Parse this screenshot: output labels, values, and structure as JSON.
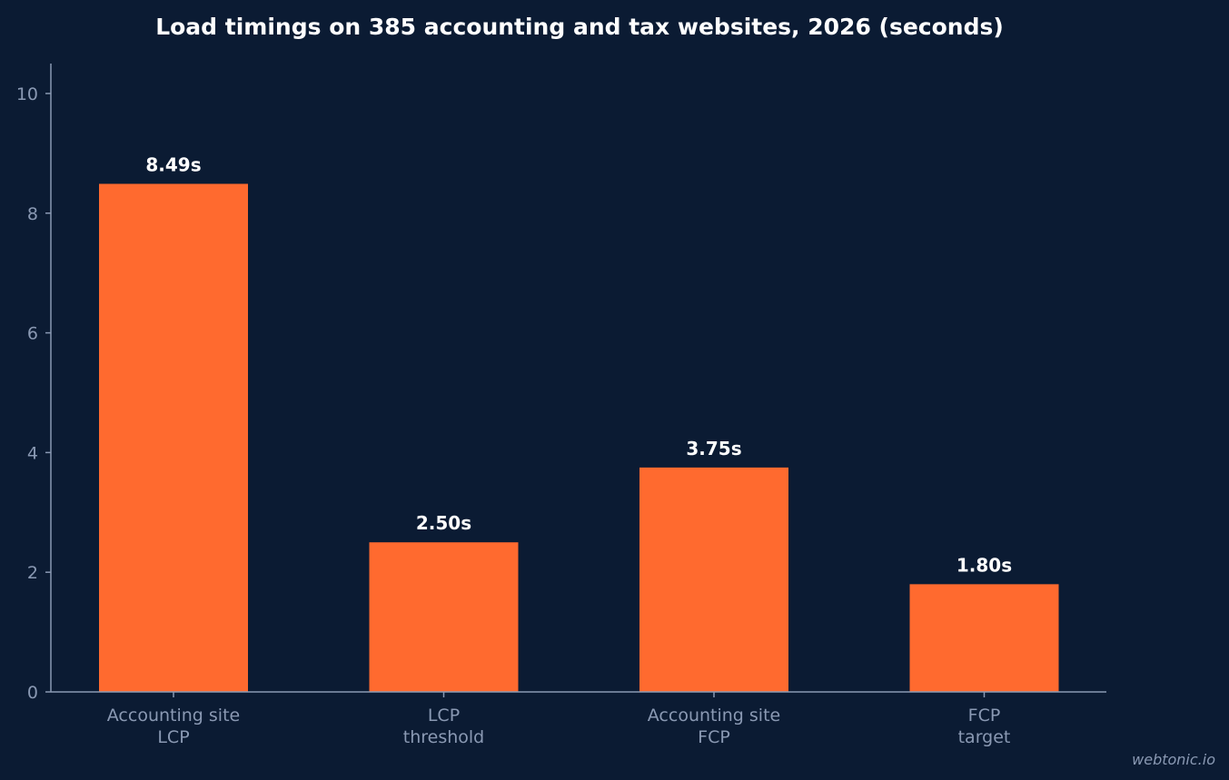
{
  "chart_data": {
    "type": "bar",
    "title": "Load timings on 385 accounting and tax websites, 2026 (seconds)",
    "xlabel": "",
    "ylabel": "",
    "categories": [
      [
        "Accounting site",
        "LCP"
      ],
      [
        "LCP",
        "threshold"
      ],
      [
        "Accounting site",
        "FCP"
      ],
      [
        "FCP",
        "target"
      ]
    ],
    "values": [
      8.49,
      2.5,
      3.75,
      1.8
    ],
    "data_labels": [
      "8.49s",
      "2.50s",
      "3.75s",
      "1.80s"
    ],
    "ylim": [
      0,
      10.5
    ],
    "yticks": [
      0,
      2,
      4,
      6,
      8,
      10
    ],
    "grid": false,
    "bar_color": "#ff6a2f"
  },
  "watermark": "webtonic.io",
  "colors": {
    "background": "#0b1b33",
    "axis": "#8a99b3",
    "text": "#ffffff"
  }
}
